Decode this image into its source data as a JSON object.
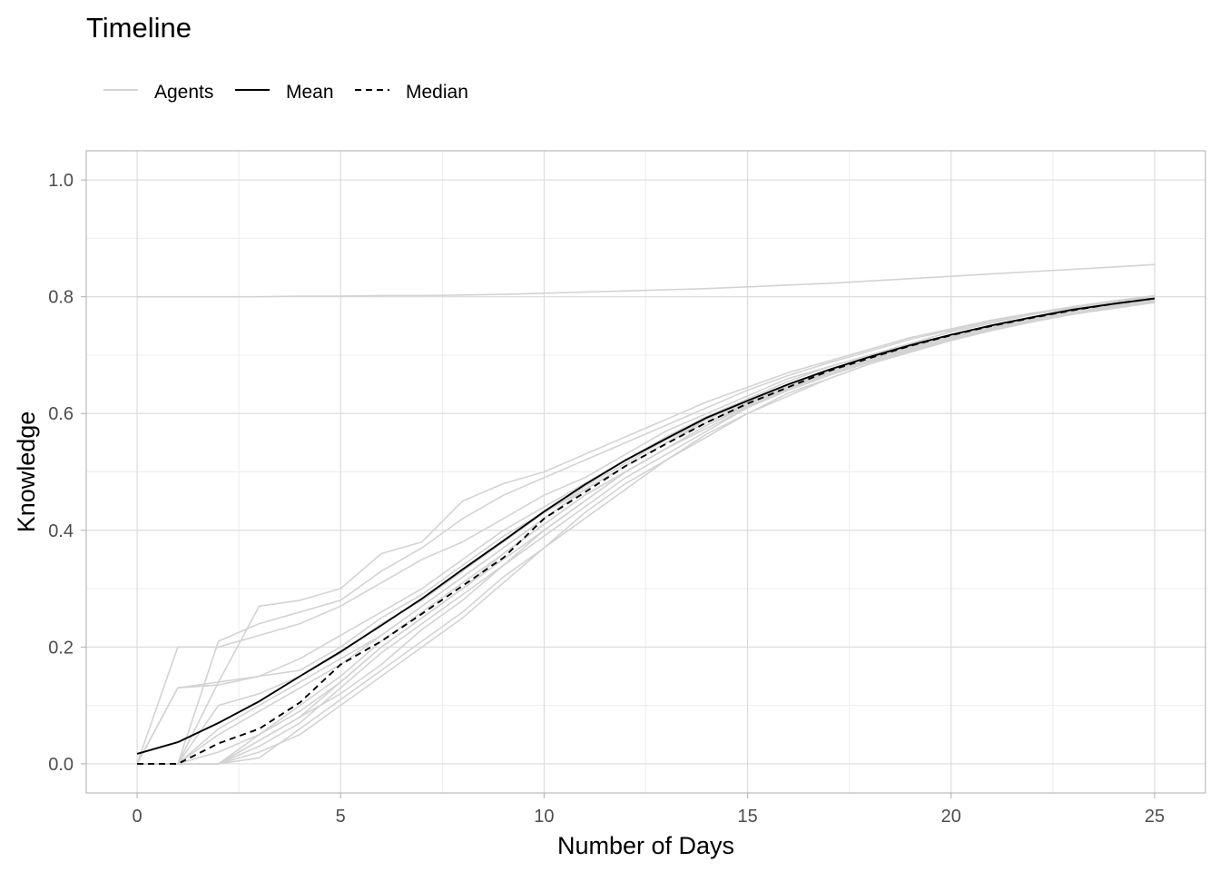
{
  "chart_data": {
    "type": "line",
    "title": "Timeline",
    "xlabel": "Number of Days",
    "ylabel": "Knowledge",
    "xlim": [
      -1.25,
      26.25
    ],
    "ylim": [
      -0.05,
      1.05
    ],
    "x_ticks": [
      0,
      5,
      10,
      15,
      20,
      25
    ],
    "x_tick_labels": [
      "0",
      "5",
      "10",
      "15",
      "20",
      "25"
    ],
    "y_ticks": [
      0.0,
      0.2,
      0.4,
      0.6,
      0.8,
      1.0
    ],
    "y_tick_labels": [
      "0.0",
      "0.2",
      "0.4",
      "0.6",
      "0.8",
      "1.0"
    ],
    "grid": true,
    "legend_position": "top-left",
    "legend": [
      {
        "label": "Agents",
        "color": "#d3d3d3",
        "linetype": "solid"
      },
      {
        "label": "Mean",
        "color": "#000000",
        "linetype": "solid"
      },
      {
        "label": "Median",
        "color": "#000000",
        "linetype": "dashed"
      }
    ],
    "x": [
      0,
      1,
      2,
      3,
      4,
      5,
      6,
      7,
      8,
      9,
      10,
      11,
      12,
      13,
      14,
      15,
      16,
      17,
      18,
      19,
      20,
      21,
      22,
      23,
      24,
      25
    ],
    "series": [
      {
        "name": "Mean",
        "color": "#000000",
        "linetype": "solid",
        "values": [
          0.017,
          0.037,
          0.07,
          0.107,
          0.15,
          0.192,
          0.237,
          0.283,
          0.333,
          0.382,
          0.432,
          0.478,
          0.52,
          0.557,
          0.593,
          0.622,
          0.65,
          0.675,
          0.697,
          0.717,
          0.735,
          0.751,
          0.765,
          0.778,
          0.788,
          0.797
        ]
      },
      {
        "name": "Median",
        "color": "#000000",
        "linetype": "dashed",
        "values": [
          0.0,
          0.0,
          0.035,
          0.06,
          0.105,
          0.17,
          0.21,
          0.257,
          0.305,
          0.353,
          0.42,
          0.465,
          0.51,
          0.548,
          0.585,
          0.617,
          0.645,
          0.673,
          0.695,
          0.716,
          0.734,
          0.75,
          0.764,
          0.777,
          0.788,
          0.797
        ]
      },
      {
        "name": "Agents",
        "color": "#d3d3d3",
        "linetype": "solid",
        "members": [
          {
            "values": [
              0.8,
              0.8,
              0.8,
              0.8,
              0.801,
              0.801,
              0.802,
              0.802,
              0.803,
              0.804,
              0.806,
              0.808,
              0.81,
              0.812,
              0.814,
              0.817,
              0.82,
              0.823,
              0.827,
              0.831,
              0.835,
              0.839,
              0.843,
              0.847,
              0.851,
              0.855
            ]
          },
          {
            "values": [
              0.0,
              0.2,
              0.2,
              0.22,
              0.24,
              0.27,
              0.31,
              0.35,
              0.38,
              0.42,
              0.46,
              0.49,
              0.53,
              0.57,
              0.6,
              0.63,
              0.66,
              0.68,
              0.7,
              0.72,
              0.74,
              0.755,
              0.77,
              0.78,
              0.79,
              0.8
            ]
          },
          {
            "values": [
              0.0,
              0.13,
              0.135,
              0.15,
              0.18,
              0.22,
              0.26,
              0.3,
              0.35,
              0.4,
              0.44,
              0.48,
              0.52,
              0.56,
              0.595,
              0.625,
              0.655,
              0.68,
              0.7,
              0.72,
              0.74,
              0.755,
              0.77,
              0.78,
              0.79,
              0.8
            ]
          },
          {
            "values": [
              0.0,
              0.13,
              0.14,
              0.15,
              0.16,
              0.2,
              0.25,
              0.29,
              0.34,
              0.39,
              0.43,
              0.47,
              0.51,
              0.55,
              0.59,
              0.62,
              0.65,
              0.675,
              0.695,
              0.715,
              0.735,
              0.75,
              0.765,
              0.777,
              0.787,
              0.796
            ]
          },
          {
            "values": [
              0.0,
              0.0,
              0.14,
              0.27,
              0.28,
              0.3,
              0.36,
              0.38,
              0.45,
              0.48,
              0.5,
              0.53,
              0.56,
              0.59,
              0.62,
              0.645,
              0.67,
              0.69,
              0.71,
              0.73,
              0.745,
              0.76,
              0.772,
              0.783,
              0.793,
              0.802
            ]
          },
          {
            "values": [
              0.0,
              0.0,
              0.21,
              0.24,
              0.26,
              0.28,
              0.33,
              0.37,
              0.42,
              0.46,
              0.49,
              0.52,
              0.55,
              0.58,
              0.61,
              0.64,
              0.665,
              0.687,
              0.707,
              0.727,
              0.743,
              0.758,
              0.77,
              0.782,
              0.792,
              0.8
            ]
          },
          {
            "values": [
              0.0,
              0.0,
              0.0,
              0.04,
              0.08,
              0.12,
              0.17,
              0.23,
              0.28,
              0.34,
              0.39,
              0.44,
              0.49,
              0.53,
              0.57,
              0.61,
              0.64,
              0.665,
              0.69,
              0.71,
              0.73,
              0.745,
              0.76,
              0.772,
              0.783,
              0.792
            ]
          },
          {
            "values": [
              0.0,
              0.0,
              0.0,
              0.01,
              0.06,
              0.11,
              0.16,
              0.21,
              0.26,
              0.32,
              0.37,
              0.43,
              0.48,
              0.52,
              0.565,
              0.6,
              0.635,
              0.66,
              0.685,
              0.705,
              0.725,
              0.742,
              0.757,
              0.77,
              0.78,
              0.79
            ]
          },
          {
            "values": [
              0.0,
              0.0,
              0.06,
              0.1,
              0.14,
              0.18,
              0.22,
              0.27,
              0.32,
              0.37,
              0.42,
              0.47,
              0.51,
              0.55,
              0.585,
              0.615,
              0.645,
              0.67,
              0.693,
              0.713,
              0.73,
              0.747,
              0.762,
              0.775,
              0.785,
              0.794
            ]
          },
          {
            "values": [
              0.0,
              0.0,
              0.0,
              0.03,
              0.07,
              0.13,
              0.19,
              0.24,
              0.29,
              0.34,
              0.4,
              0.45,
              0.5,
              0.54,
              0.58,
              0.615,
              0.645,
              0.67,
              0.69,
              0.712,
              0.732,
              0.748,
              0.763,
              0.776,
              0.786,
              0.795
            ]
          },
          {
            "values": [
              0.0,
              0.0,
              0.02,
              0.05,
              0.09,
              0.14,
              0.2,
              0.25,
              0.3,
              0.36,
              0.41,
              0.46,
              0.5,
              0.54,
              0.58,
              0.612,
              0.642,
              0.668,
              0.692,
              0.712,
              0.731,
              0.747,
              0.762,
              0.775,
              0.785,
              0.793
            ]
          },
          {
            "values": [
              0.0,
              0.0,
              0.0,
              0.05,
              0.1,
              0.15,
              0.21,
              0.26,
              0.31,
              0.36,
              0.41,
              0.46,
              0.5,
              0.54,
              0.575,
              0.61,
              0.64,
              0.665,
              0.688,
              0.708,
              0.728,
              0.744,
              0.759,
              0.772,
              0.782,
              0.79
            ]
          },
          {
            "values": [
              0.0,
              0.0,
              0.0,
              0.02,
              0.05,
              0.1,
              0.15,
              0.2,
              0.25,
              0.31,
              0.37,
              0.42,
              0.47,
              0.52,
              0.56,
              0.6,
              0.63,
              0.66,
              0.685,
              0.706,
              0.726,
              0.743,
              0.758,
              0.771,
              0.782,
              0.791
            ]
          },
          {
            "values": [
              0.0,
              0.0,
              0.1,
              0.12,
              0.15,
              0.19,
              0.24,
              0.28,
              0.33,
              0.38,
              0.43,
              0.475,
              0.515,
              0.555,
              0.59,
              0.62,
              0.65,
              0.675,
              0.697,
              0.717,
              0.735,
              0.751,
              0.765,
              0.778,
              0.788,
              0.797
            ]
          },
          {
            "values": [
              0.0,
              0.0,
              0.0,
              0.04,
              0.08,
              0.14,
              0.2,
              0.25,
              0.3,
              0.35,
              0.4,
              0.45,
              0.5,
              0.54,
              0.58,
              0.615,
              0.645,
              0.672,
              0.695,
              0.716,
              0.734,
              0.75,
              0.764,
              0.777,
              0.787,
              0.796
            ]
          },
          {
            "values": [
              0.0,
              0.0,
              0.05,
              0.09,
              0.13,
              0.17,
              0.22,
              0.27,
              0.32,
              0.37,
              0.42,
              0.47,
              0.51,
              0.55,
              0.585,
              0.618,
              0.648,
              0.673,
              0.696,
              0.716,
              0.734,
              0.75,
              0.764,
              0.776,
              0.786,
              0.795
            ]
          }
        ]
      }
    ]
  }
}
